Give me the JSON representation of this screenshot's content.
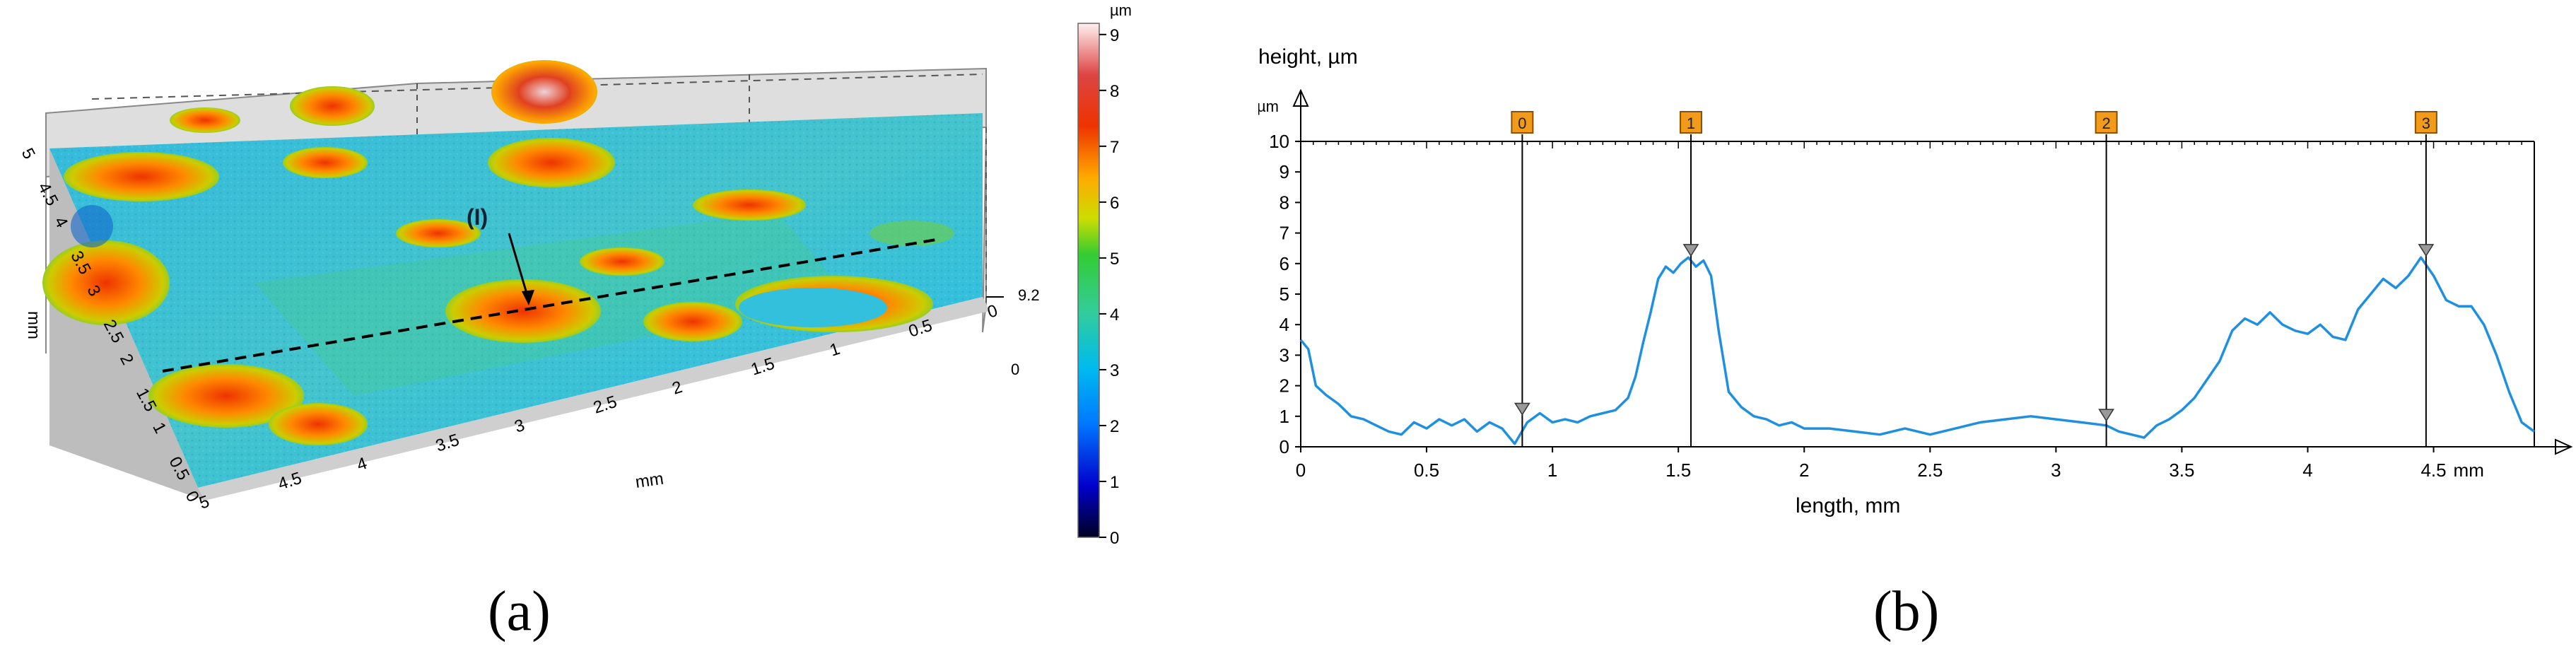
{
  "panels": {
    "a_label": "(a)",
    "b_label": "(b)"
  },
  "chart_data": [
    {
      "type": "heatmap",
      "panel": "a",
      "description_note": "",
      "x_ticks": [
        "5",
        "4.5",
        "4",
        "3.5",
        "3",
        "2.5",
        "2",
        "1.5",
        "1",
        "0.5",
        "0"
      ],
      "y_ticks": [
        "0",
        "0.5",
        "1",
        "1.5",
        "2",
        "2.5",
        "3",
        "3.5",
        "4",
        "4.5",
        "5"
      ],
      "xlabel": "mm",
      "ylabel": "mm",
      "z_ticks": [
        "0",
        "9.2"
      ],
      "colorbar": {
        "unit": "µm",
        "ticks": [
          "0",
          "1",
          "2",
          "3",
          "4",
          "5",
          "6",
          "7",
          "8",
          "9"
        ],
        "range": [
          0,
          9.2
        ],
        "colors": [
          "#000033",
          "#0000cc",
          "#0066ff",
          "#00bbee",
          "#33cc99",
          "#33cc33",
          "#ccdd00",
          "#ffaa00",
          "#ee3300",
          "#ffeeee"
        ]
      },
      "annotation": "(I)"
    },
    {
      "type": "line",
      "panel": "b",
      "title": "height, µm",
      "ylabel_unit": "µm",
      "xlabel": "length, mm",
      "x_unit": "mm",
      "xlim": [
        0,
        4.9
      ],
      "ylim": [
        0,
        10
      ],
      "x_ticks": [
        "0",
        "0.5",
        "1",
        "1.5",
        "2",
        "2.5",
        "3",
        "3.5",
        "4",
        "4.5"
      ],
      "y_ticks": [
        "0",
        "1",
        "2",
        "3",
        "4",
        "5",
        "6",
        "7",
        "8",
        "9",
        "10"
      ],
      "line_color": "#1f8fe0",
      "markers": [
        {
          "label": "0",
          "x": 0.88,
          "y": 1.1
        },
        {
          "label": "1",
          "x": 1.55,
          "y": 6.3
        },
        {
          "label": "2",
          "x": 3.2,
          "y": 0.9
        },
        {
          "label": "3",
          "x": 4.47,
          "y": 6.3
        }
      ],
      "series": [
        {
          "x": [
            0,
            0.03,
            0.06,
            0.1,
            0.15,
            0.2,
            0.25,
            0.3,
            0.35,
            0.4,
            0.45,
            0.5,
            0.55,
            0.6,
            0.65,
            0.7,
            0.75,
            0.8,
            0.85,
            0.9,
            0.95,
            1.0,
            1.05,
            1.1,
            1.15,
            1.2,
            1.25,
            1.3,
            1.33,
            1.36,
            1.39,
            1.42,
            1.45,
            1.48,
            1.51,
            1.54,
            1.57,
            1.6,
            1.63,
            1.66,
            1.7,
            1.75,
            1.8,
            1.85,
            1.9,
            1.95,
            2.0,
            2.1,
            2.2,
            2.3,
            2.4,
            2.5,
            2.6,
            2.7,
            2.8,
            2.9,
            3.0,
            3.1,
            3.2,
            3.25,
            3.3,
            3.35,
            3.4,
            3.45,
            3.5,
            3.55,
            3.6,
            3.65,
            3.7,
            3.75,
            3.8,
            3.85,
            3.9,
            3.95,
            4.0,
            4.05,
            4.1,
            4.15,
            4.2,
            4.25,
            4.3,
            4.35,
            4.4,
            4.45,
            4.5,
            4.55,
            4.6,
            4.65,
            4.7,
            4.75,
            4.8,
            4.85,
            4.9
          ],
          "y": [
            3.5,
            3.2,
            2.0,
            1.7,
            1.4,
            1.0,
            0.9,
            0.7,
            0.5,
            0.4,
            0.8,
            0.6,
            0.9,
            0.7,
            0.9,
            0.5,
            0.8,
            0.6,
            0.1,
            0.8,
            1.1,
            0.8,
            0.9,
            0.8,
            1.0,
            1.1,
            1.2,
            1.6,
            2.3,
            3.4,
            4.4,
            5.5,
            5.9,
            5.7,
            6.0,
            6.2,
            5.9,
            6.1,
            5.6,
            3.8,
            1.8,
            1.3,
            1.0,
            0.9,
            0.7,
            0.8,
            0.6,
            0.6,
            0.5,
            0.4,
            0.6,
            0.4,
            0.6,
            0.8,
            0.9,
            1.0,
            0.9,
            0.8,
            0.7,
            0.5,
            0.4,
            0.3,
            0.7,
            0.9,
            1.2,
            1.6,
            2.2,
            2.8,
            3.8,
            4.2,
            4.0,
            4.4,
            4.0,
            3.8,
            3.7,
            4.0,
            3.6,
            3.5,
            4.5,
            5.0,
            5.5,
            5.2,
            5.6,
            6.2,
            5.6,
            4.8,
            4.6,
            4.6,
            4.0,
            3.0,
            1.8,
            0.8,
            0.5
          ]
        }
      ]
    }
  ]
}
